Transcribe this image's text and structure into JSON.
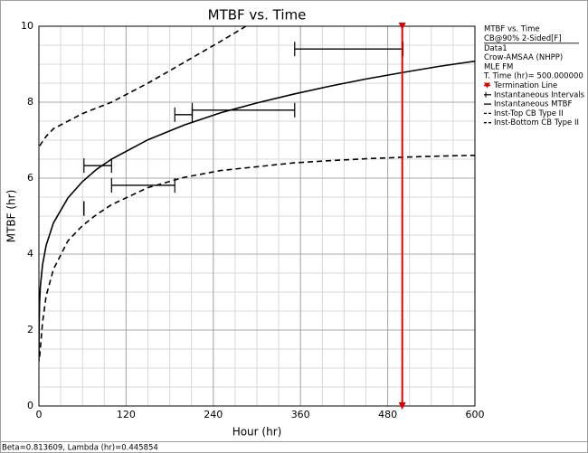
{
  "chart_data": {
    "type": "reliability-line",
    "title": "MTBF vs. Time",
    "x_label": "Hour (hr)",
    "y_label": "MTBF (hr)",
    "xlim": [
      0,
      600
    ],
    "ylim": [
      0,
      10
    ],
    "xticks": [
      0,
      120,
      240,
      360,
      480,
      600
    ],
    "yticks": [
      0,
      2,
      4,
      6,
      8,
      10
    ],
    "xminor_step": 30,
    "yminor_step": 0.5,
    "grid": true,
    "info": [
      "MTBF vs. Time",
      "CB@90% 2-Sided[F]",
      "Data1",
      "Crow-AMSAA (NHPP)",
      "MLE FM",
      "T. Time (hr)= 500.000000"
    ],
    "termination": {
      "name": "Termination Line",
      "value": 500,
      "color": "#e00000"
    },
    "intervals": {
      "name": "Instantaneous Intervals",
      "color": "#000000",
      "items": [
        {
          "start": 62,
          "end": 62,
          "value": 5.2
        },
        {
          "start": 62,
          "end": 100,
          "value": 6.33
        },
        {
          "start": 100,
          "end": 187,
          "value": 5.81
        },
        {
          "start": 187,
          "end": 211,
          "value": 7.67
        },
        {
          "start": 211,
          "end": 352,
          "value": 7.79
        },
        {
          "start": 352,
          "end": 501,
          "value": 9.4
        }
      ]
    },
    "series": [
      {
        "name": "Instantaneous MTBF",
        "color": "#000000",
        "dashed": false,
        "x": [
          0.01,
          0.2,
          1,
          2,
          5,
          10,
          20,
          40,
          60,
          80,
          100,
          150,
          200,
          250,
          300,
          350,
          400,
          450,
          500,
          550,
          600
        ],
        "values": [
          1.17,
          2.04,
          2.76,
          3.14,
          3.72,
          4.23,
          4.82,
          5.48,
          5.91,
          6.24,
          6.5,
          7.01,
          7.4,
          7.72,
          7.98,
          8.21,
          8.42,
          8.61,
          8.78,
          8.94,
          9.08
        ]
      },
      {
        "name": "Inst-Top CB Type II",
        "color": "#000000",
        "dashed": true,
        "x": [
          1,
          10,
          20,
          40,
          60,
          80,
          100,
          150,
          200,
          250,
          285
        ],
        "values": [
          6.85,
          7.1,
          7.3,
          7.5,
          7.7,
          7.85,
          8.0,
          8.5,
          9.05,
          9.6,
          10.0
        ]
      },
      {
        "name": "Inst-Bottom CB Type II",
        "color": "#000000",
        "dashed": true,
        "x": [
          1,
          5,
          10,
          20,
          40,
          60,
          80,
          100,
          150,
          200,
          250,
          300,
          350,
          400,
          450,
          500,
          550,
          600
        ],
        "values": [
          1.3,
          2.2,
          2.9,
          3.6,
          4.35,
          4.75,
          5.05,
          5.3,
          5.75,
          6.02,
          6.2,
          6.3,
          6.4,
          6.46,
          6.51,
          6.55,
          6.58,
          6.6
        ]
      }
    ],
    "footer": "Beta=0.813609, Lambda (hr)=0.445854"
  }
}
